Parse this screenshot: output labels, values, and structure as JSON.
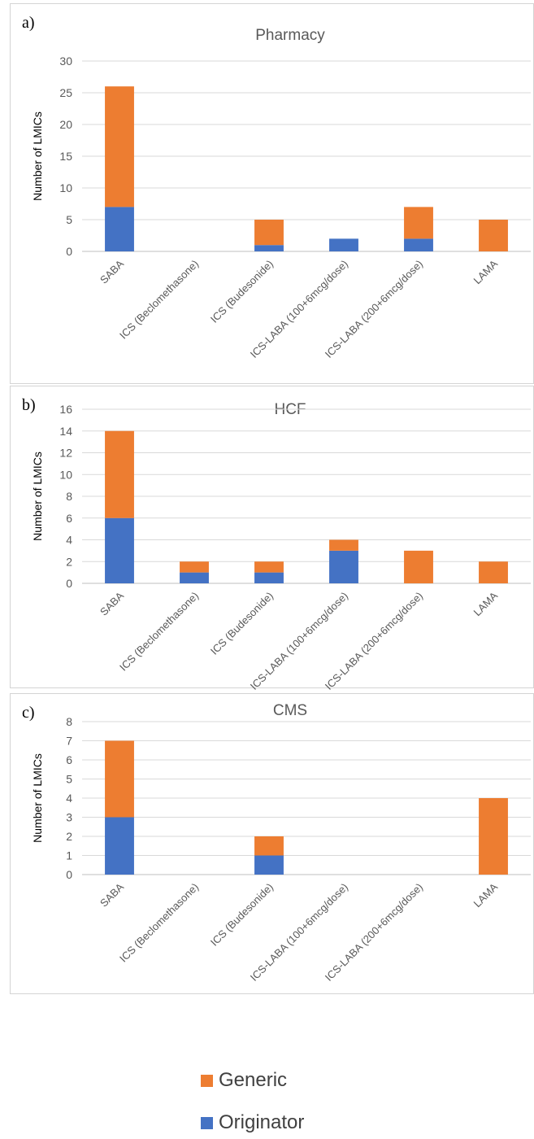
{
  "colors": {
    "generic": "#ED7D31",
    "originator": "#4472C4",
    "grid": "#d9d9d9",
    "axis": "#bfbfbf"
  },
  "panels": [
    {
      "label": "a)"
    },
    {
      "label": "b)"
    },
    {
      "label": "c)"
    }
  ],
  "legend": {
    "generic": "Generic",
    "originator": "Originator"
  },
  "chart_data": [
    {
      "type": "bar",
      "stacked": true,
      "title": "Pharmacy",
      "ylabel": "Number of LMICs",
      "categories": [
        "SABA",
        "ICS (Beclomethasone)",
        "ICS (Budesonide)",
        "ICS-LABA (100+6mcg/dose)",
        "ICS-LABA (200+6mcg/dose)",
        "LAMA"
      ],
      "ylim": [
        0,
        30
      ],
      "yticks": [
        0,
        5,
        10,
        15,
        20,
        25,
        30
      ],
      "series": [
        {
          "name": "Originator",
          "values": [
            7,
            0,
            1,
            2,
            2,
            0
          ]
        },
        {
          "name": "Generic",
          "values": [
            19,
            0,
            4,
            0,
            5,
            5
          ]
        }
      ]
    },
    {
      "type": "bar",
      "stacked": true,
      "title": "HCF",
      "ylabel": "Number of LMICs",
      "categories": [
        "SABA",
        "ICS (Beclomethasone)",
        "ICS (Budesonide)",
        "ICS-LABA (100+6mcg/dose)",
        "ICS-LABA (200+6mcg/dose)",
        "LAMA"
      ],
      "ylim": [
        0,
        16
      ],
      "yticks": [
        0,
        2,
        4,
        6,
        8,
        10,
        12,
        14,
        16
      ],
      "series": [
        {
          "name": "Originator",
          "values": [
            6,
            1,
            1,
            3,
            0,
            0
          ]
        },
        {
          "name": "Generic",
          "values": [
            8,
            1,
            1,
            1,
            3,
            2
          ]
        }
      ]
    },
    {
      "type": "bar",
      "stacked": true,
      "title": "CMS",
      "ylabel": "Number of LMICs",
      "categories": [
        "SABA",
        "ICS (Beclomethasone)",
        "ICS (Budesonide)",
        "ICS-LABA (100+6mcg/dose)",
        "ICS-LABA (200+6mcg/dose)",
        "LAMA"
      ],
      "ylim": [
        0,
        8
      ],
      "yticks": [
        0,
        1,
        2,
        3,
        4,
        5,
        6,
        7,
        8
      ],
      "series": [
        {
          "name": "Originator",
          "values": [
            3,
            0,
            1,
            0,
            0,
            0
          ]
        },
        {
          "name": "Generic",
          "values": [
            4,
            0,
            1,
            0,
            0,
            4
          ]
        }
      ]
    }
  ]
}
